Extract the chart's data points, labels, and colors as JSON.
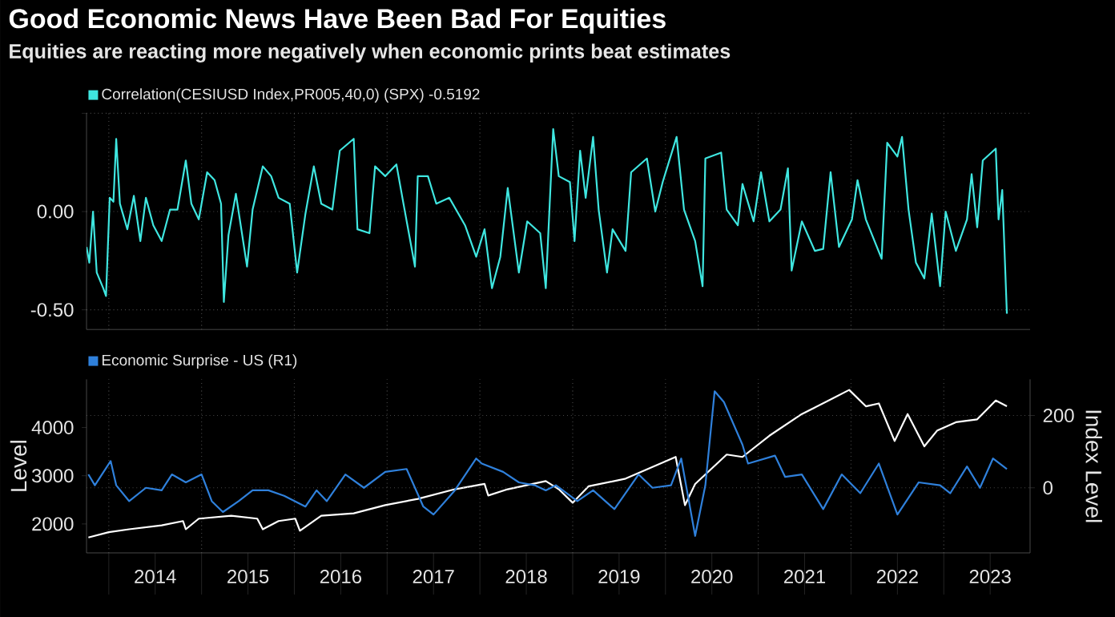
{
  "chart_data": [
    {
      "type": "line",
      "title": "Good Economic News Have Been Bad For Equities",
      "subtitle": "Equities are reacting more negatively when economic prints beat estimates",
      "series": [
        {
          "name": "Correlation(CESIUSD Index,PR005,40,0) (SPX) -0.5192",
          "color": "#3fe6e0",
          "x": [
            2013.76,
            2013.79,
            2013.83,
            2013.87,
            2013.94,
            2013.97,
            2014.01,
            2014.05,
            2014.08,
            2014.12,
            2014.2,
            2014.27,
            2014.34,
            2014.4,
            2014.48,
            2014.57,
            2014.66,
            2014.74,
            2014.83,
            2014.89,
            2014.97,
            2015.06,
            2015.14,
            2015.21,
            2015.24,
            2015.29,
            2015.37,
            2015.49,
            2015.55,
            2015.66,
            2015.75,
            2015.83,
            2015.95,
            2016.03,
            2016.12,
            2016.21,
            2016.29,
            2016.41,
            2016.49,
            2016.64,
            2016.68,
            2016.81,
            2016.87,
            2016.98,
            2017.1,
            2017.18,
            2017.3,
            2017.33,
            2017.44,
            2017.53,
            2017.67,
            2017.84,
            2017.96,
            2018.05,
            2018.13,
            2018.22,
            2018.3,
            2018.42,
            2018.51,
            2018.65,
            2018.71,
            2018.79,
            2018.85,
            2018.97,
            2019.02,
            2019.08,
            2019.14,
            2019.22,
            2019.28,
            2019.37,
            2019.43,
            2019.57,
            2019.63,
            2019.8,
            2019.89,
            2019.97,
            2020.12,
            2020.2,
            2020.32,
            2020.4,
            2020.43,
            2020.6,
            2020.66,
            2020.78,
            2020.83,
            2020.95,
            2021.03,
            2021.12,
            2021.24,
            2021.32,
            2021.36,
            2021.47,
            2021.61,
            2021.7,
            2021.78,
            2021.87,
            2022.01,
            2022.07,
            2022.16,
            2022.33,
            2022.39,
            2022.5,
            2022.55,
            2022.62,
            2022.7,
            2022.79,
            2022.87,
            2022.96,
            2023.02,
            2023.13,
            2023.25,
            2023.3,
            2023.36,
            2023.42,
            2023.56,
            2023.59,
            2023.63,
            2023.68
          ],
          "values": [
            -0.18,
            -0.26,
            0.0,
            -0.31,
            -0.39,
            -0.43,
            0.07,
            0.05,
            0.37,
            0.04,
            -0.09,
            0.08,
            -0.15,
            0.07,
            -0.07,
            -0.15,
            0.01,
            0.01,
            0.26,
            0.04,
            -0.04,
            0.2,
            0.16,
            0.04,
            -0.46,
            -0.12,
            0.09,
            -0.28,
            0.01,
            0.23,
            0.18,
            0.07,
            0.04,
            -0.31,
            -0.01,
            0.23,
            0.04,
            0.01,
            0.31,
            0.37,
            -0.09,
            -0.11,
            0.23,
            0.18,
            0.24,
            0.03,
            -0.28,
            0.18,
            0.18,
            0.04,
            0.07,
            -0.07,
            -0.23,
            -0.09,
            -0.39,
            -0.23,
            0.12,
            -0.31,
            -0.05,
            -0.11,
            -0.39,
            0.42,
            0.18,
            0.15,
            -0.15,
            0.31,
            0.07,
            0.38,
            0.01,
            -0.31,
            -0.09,
            -0.2,
            0.2,
            0.27,
            0.0,
            0.15,
            0.38,
            0.01,
            -0.15,
            -0.38,
            0.27,
            0.3,
            0.01,
            -0.07,
            0.14,
            -0.05,
            0.2,
            -0.05,
            0.01,
            0.22,
            -0.3,
            -0.05,
            -0.2,
            -0.19,
            0.2,
            -0.18,
            -0.04,
            0.16,
            -0.04,
            -0.24,
            0.35,
            0.28,
            0.38,
            0.01,
            -0.26,
            -0.34,
            -0.01,
            -0.38,
            0.0,
            -0.2,
            -0.04,
            0.19,
            -0.08,
            0.26,
            0.32,
            -0.04,
            0.11,
            -0.52
          ]
        }
      ],
      "xlim": [
        2013.76,
        2023.93
      ],
      "xticks": [
        {
          "value": 2014,
          "label": null
        },
        {
          "value": 2015,
          "label": null
        },
        {
          "value": 2016,
          "label": null
        },
        {
          "value": 2017,
          "label": null
        },
        {
          "value": 2018,
          "label": null
        },
        {
          "value": 2019,
          "label": null
        },
        {
          "value": 2020,
          "label": null
        },
        {
          "value": 2021,
          "label": null
        },
        {
          "value": 2022,
          "label": null
        },
        {
          "value": 2023,
          "label": null
        }
      ],
      "ylim": [
        -0.6,
        0.5
      ],
      "yticks": [
        {
          "value": -0.5,
          "label": "-0.50"
        },
        {
          "value": 0,
          "label": "0.00"
        },
        {
          "value": 0.5,
          "label": null
        }
      ],
      "tick_labels": "y",
      "grid": true,
      "legend": "top left"
    },
    {
      "type": "line",
      "ylabel": "Level",
      "y2label": "Index Level",
      "series": [
        {
          "color": "#ffffff",
          "x": [
            2013.78,
            2014.0,
            2014.22,
            2014.57,
            2014.8,
            2014.83,
            2014.97,
            2015.32,
            2015.6,
            2015.66,
            2015.83,
            2016.01,
            2016.06,
            2016.29,
            2016.64,
            2016.98,
            2017.33,
            2017.73,
            2018.05,
            2018.09,
            2018.3,
            2018.71,
            2018.85,
            2019.0,
            2019.17,
            2019.57,
            2020.11,
            2020.21,
            2020.32,
            2020.66,
            2020.83,
            2021.12,
            2021.47,
            2021.81,
            2021.98,
            2022.16,
            2022.3,
            2022.47,
            2022.61,
            2022.79,
            2022.93,
            2023.13,
            2023.36,
            2023.56,
            2023.68
          ],
          "values": [
            1720,
            1830,
            1890,
            1970,
            2060,
            1890,
            2110,
            2170,
            2110,
            1890,
            2060,
            2110,
            1860,
            2170,
            2220,
            2390,
            2520,
            2720,
            2830,
            2590,
            2720,
            2890,
            2720,
            2440,
            2780,
            2940,
            3390,
            2390,
            2830,
            3440,
            3390,
            3830,
            4280,
            4610,
            4780,
            4440,
            4500,
            3720,
            4280,
            3610,
            3940,
            4110,
            4170,
            4560,
            4440
          ]
        },
        {
          "name": "Economic Surprise - US (R1)",
          "color": "#2f80db",
          "axis": "y2",
          "x": [
            2013.78,
            2013.85,
            2014.02,
            2014.08,
            2014.22,
            2014.4,
            2014.57,
            2014.68,
            2014.83,
            2015.0,
            2015.11,
            2015.23,
            2015.4,
            2015.55,
            2015.72,
            2015.89,
            2016.12,
            2016.24,
            2016.35,
            2016.55,
            2016.75,
            2016.98,
            2017.21,
            2017.39,
            2017.5,
            2017.73,
            2017.96,
            2018.02,
            2018.25,
            2018.42,
            2018.59,
            2018.71,
            2018.82,
            2019.05,
            2019.22,
            2019.45,
            2019.71,
            2019.86,
            2020.06,
            2020.17,
            2020.32,
            2020.43,
            2020.53,
            2020.63,
            2020.83,
            2020.89,
            2021.18,
            2021.29,
            2021.47,
            2021.7,
            2021.9,
            2022.1,
            2022.3,
            2022.5,
            2022.73,
            2022.96,
            2023.07,
            2023.25,
            2023.39,
            2023.53,
            2023.68
          ],
          "values": [
            37,
            7,
            74,
            7,
            -37,
            0,
            -7,
            37,
            15,
            37,
            -37,
            -67,
            -37,
            -7,
            -7,
            -22,
            -52,
            -7,
            -37,
            37,
            0,
            44,
            52,
            -52,
            -74,
            -7,
            81,
            67,
            44,
            15,
            7,
            -7,
            7,
            -37,
            -7,
            -59,
            37,
            0,
            7,
            81,
            -133,
            7,
            267,
            237,
            119,
            67,
            89,
            30,
            37,
            -59,
            37,
            -15,
            67,
            -74,
            15,
            7,
            -15,
            59,
            0,
            81,
            52
          ]
        }
      ],
      "xlim": [
        2013.76,
        2023.93
      ],
      "xticks": [
        {
          "value": 2014,
          "label": null
        },
        {
          "value": 2014.5,
          "label": "2014"
        },
        {
          "value": 2015,
          "label": null
        },
        {
          "value": 2015.5,
          "label": "2015"
        },
        {
          "value": 2016,
          "label": null
        },
        {
          "value": 2016.5,
          "label": "2016"
        },
        {
          "value": 2017,
          "label": null
        },
        {
          "value": 2017.5,
          "label": "2017"
        },
        {
          "value": 2018,
          "label": null
        },
        {
          "value": 2018.5,
          "label": "2018"
        },
        {
          "value": 2019,
          "label": null
        },
        {
          "value": 2019.5,
          "label": "2019"
        },
        {
          "value": 2020,
          "label": null
        },
        {
          "value": 2020.5,
          "label": "2020"
        },
        {
          "value": 2021,
          "label": null
        },
        {
          "value": 2021.5,
          "label": "2021"
        },
        {
          "value": 2022,
          "label": null
        },
        {
          "value": 2022.5,
          "label": "2022"
        },
        {
          "value": 2023,
          "label": null
        },
        {
          "value": 2023.5,
          "label": "2023"
        }
      ],
      "ylim": [
        1400,
        5000
      ],
      "yticks": [
        2000,
        3000,
        4000
      ],
      "y2lim": [
        -180,
        300
      ],
      "y2ticks": [
        0,
        200
      ],
      "grid": true,
      "legend": "top left"
    }
  ]
}
